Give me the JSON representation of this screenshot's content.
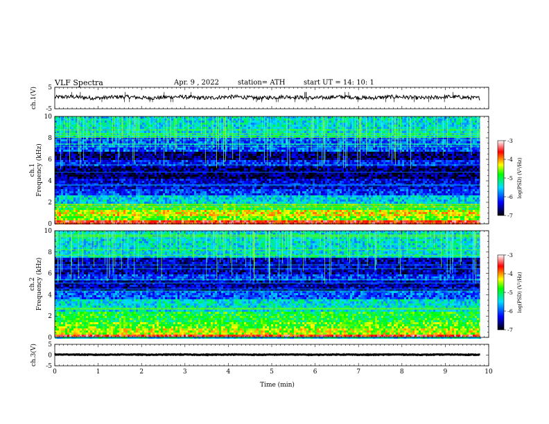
{
  "header": {
    "title": "VLF  Spectra",
    "date": "Apr. 9  , 2022",
    "station": "station= ATH",
    "start_ut": "start  UT  =   14: 10: 1"
  },
  "chart_data": [
    {
      "type": "line",
      "panel": "ch1-waveform",
      "ylabel": "ch.1(V)",
      "ylim": [
        -5,
        5
      ],
      "yticks": [
        "5",
        "-5"
      ],
      "series_color": "#000000",
      "baseline": 0.3,
      "amplitude": 0.9
    },
    {
      "type": "heatmap",
      "panel": "ch1-spectrogram",
      "ylabel": "ch.1\nFrequency  (kHz)",
      "ylim": [
        0,
        10
      ],
      "yticks": [
        "0",
        "2",
        "4",
        "6",
        "8",
        "10"
      ],
      "colorbar": {
        "label": "log(PSD) (V²/Hz)",
        "range": [
          -7,
          -3
        ],
        "ticks": [
          "-3",
          "-4",
          "-5",
          "-6",
          "-7"
        ]
      },
      "bands": [
        {
          "from": 0.0,
          "to": 0.3,
          "level": -3.6
        },
        {
          "from": 0.3,
          "to": 0.8,
          "level": -4.6
        },
        {
          "from": 0.8,
          "to": 1.2,
          "level": -4.3
        },
        {
          "from": 1.2,
          "to": 1.8,
          "level": -4.9
        },
        {
          "from": 1.8,
          "to": 2.6,
          "level": -5.5
        },
        {
          "from": 2.6,
          "to": 3.3,
          "level": -6.1
        },
        {
          "from": 3.3,
          "to": 4.2,
          "level": -6.4
        },
        {
          "from": 4.2,
          "to": 5.4,
          "level": -6.7
        },
        {
          "from": 5.4,
          "to": 6.0,
          "level": -6.2
        },
        {
          "from": 6.0,
          "to": 6.8,
          "level": -6.7
        },
        {
          "from": 6.8,
          "to": 8.0,
          "level": -6.0
        },
        {
          "from": 8.0,
          "to": 10.0,
          "level": -5.4
        }
      ]
    },
    {
      "type": "heatmap",
      "panel": "ch2-spectrogram",
      "ylabel": "ch.2\nFrequency  (kHz)",
      "ylim": [
        0,
        10
      ],
      "yticks": [
        "0",
        "2",
        "4",
        "6",
        "8",
        "10"
      ],
      "colorbar": {
        "label": "log(PSD) (V²/Hz)",
        "range": [
          -7,
          -3
        ],
        "ticks": [
          "-3",
          "-4",
          "-5",
          "-6",
          "-7"
        ]
      },
      "bands": [
        {
          "from": 0.0,
          "to": 0.3,
          "level": -3.6
        },
        {
          "from": 0.3,
          "to": 0.9,
          "level": -4.4
        },
        {
          "from": 0.9,
          "to": 1.5,
          "level": -4.7
        },
        {
          "from": 1.5,
          "to": 2.4,
          "level": -4.9
        },
        {
          "from": 2.4,
          "to": 3.5,
          "level": -5.4
        },
        {
          "from": 3.5,
          "to": 4.4,
          "level": -6.0
        },
        {
          "from": 4.4,
          "to": 5.4,
          "level": -6.5
        },
        {
          "from": 5.4,
          "to": 6.0,
          "level": -6.1
        },
        {
          "from": 6.0,
          "to": 7.5,
          "level": -6.5
        },
        {
          "from": 7.5,
          "to": 10.0,
          "level": -5.4
        }
      ]
    },
    {
      "type": "line",
      "panel": "ch3-waveform",
      "ylabel": "ch.3(V)",
      "ylim": [
        -5,
        5
      ],
      "yticks": [
        "5",
        "0",
        "-5"
      ],
      "series_color": "#000000",
      "baseline": 0.2,
      "amplitude": 0.15
    }
  ],
  "x_axis": {
    "label": "Time  (min)",
    "ticks": [
      "0",
      "1",
      "2",
      "3",
      "4",
      "5",
      "6",
      "7",
      "8",
      "9",
      "10"
    ],
    "xlim": [
      0,
      10
    ],
    "data_end": 9.8
  },
  "colors": {
    "scale": [
      "#000000",
      "#0000ff",
      "#00ffff",
      "#00ff00",
      "#ffff00",
      "#ff0000",
      "#ffffff"
    ]
  }
}
